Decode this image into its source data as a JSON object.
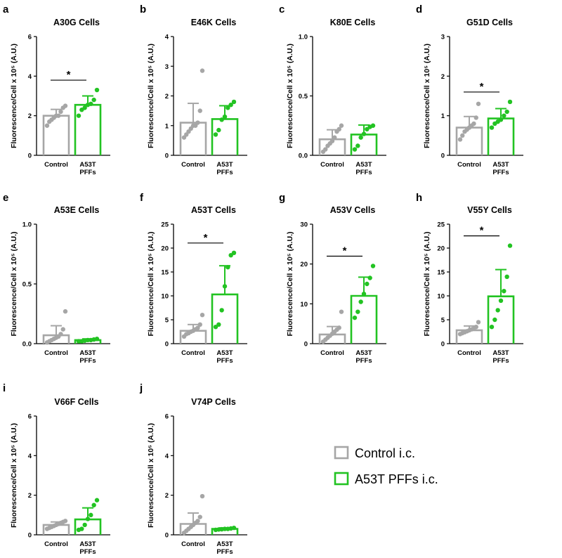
{
  "figure": {
    "ylabel": "Fluorescence/Cell x 10⁵ (A.U.)",
    "colors": {
      "control": "#a6a6a6",
      "treated": "#22c322"
    },
    "legend": [
      {
        "label": "Control i.c.",
        "key": "control"
      },
      {
        "label": "A53T PFFs i.c.",
        "key": "treated"
      }
    ]
  },
  "chart_data": [
    {
      "panel": "a",
      "type": "bar",
      "title": "A30G Cells",
      "ylim": [
        0,
        6
      ],
      "yticks": [
        0,
        2,
        4,
        6
      ],
      "categories": [
        "Control",
        "A53T PFFs"
      ],
      "values": [
        2.0,
        2.55
      ],
      "errors": [
        0.32,
        0.45
      ],
      "significance": "*",
      "points": [
        [
          1.5,
          1.7,
          1.8,
          1.9,
          2.0,
          2.0,
          2.2,
          2.4,
          2.5
        ],
        [
          2.0,
          2.3,
          2.4,
          2.55,
          2.6,
          2.8,
          3.3
        ]
      ]
    },
    {
      "panel": "b",
      "type": "bar",
      "title": "E46K Cells",
      "ylim": [
        0,
        4
      ],
      "yticks": [
        0,
        1,
        2,
        3,
        4
      ],
      "categories": [
        "Control",
        "A53T PFFs"
      ],
      "values": [
        1.1,
        1.22
      ],
      "errors": [
        0.65,
        0.45
      ],
      "significance": "",
      "points": [
        [
          0.6,
          0.7,
          0.8,
          0.9,
          1.0,
          1.0,
          1.1,
          1.5,
          2.85
        ],
        [
          0.7,
          0.85,
          1.2,
          1.3,
          1.6,
          1.7,
          1.8
        ]
      ]
    },
    {
      "panel": "c",
      "type": "bar",
      "title": "K80E Cells",
      "ylim": [
        0,
        1.0
      ],
      "yticks": [
        0.0,
        0.5,
        1.0
      ],
      "categories": [
        "Control",
        "A53T PFFs"
      ],
      "values": [
        0.135,
        0.175
      ],
      "errors": [
        0.08,
        0.08
      ],
      "significance": "",
      "points": [
        [
          0.03,
          0.05,
          0.08,
          0.1,
          0.12,
          0.15,
          0.2,
          0.22,
          0.25
        ],
        [
          0.05,
          0.08,
          0.15,
          0.18,
          0.22,
          0.24,
          0.25
        ]
      ]
    },
    {
      "panel": "d",
      "type": "bar",
      "title": "G51D Cells",
      "ylim": [
        0,
        3
      ],
      "yticks": [
        0,
        1,
        2,
        3
      ],
      "categories": [
        "Control",
        "A53T PFFs"
      ],
      "values": [
        0.7,
        0.93
      ],
      "errors": [
        0.28,
        0.25
      ],
      "significance": "*",
      "points": [
        [
          0.4,
          0.5,
          0.6,
          0.65,
          0.7,
          0.75,
          0.8,
          0.95,
          1.3
        ],
        [
          0.7,
          0.8,
          0.85,
          0.9,
          1.0,
          1.1,
          1.35
        ]
      ]
    },
    {
      "panel": "e",
      "type": "bar",
      "title": "A53E Cells",
      "ylim": [
        0,
        1.0
      ],
      "yticks": [
        0.0,
        0.5,
        1.0
      ],
      "categories": [
        "Control",
        "A53T PFFs"
      ],
      "values": [
        0.07,
        0.03
      ],
      "errors": [
        0.08,
        0.01
      ],
      "significance": "",
      "points": [
        [
          0.01,
          0.02,
          0.03,
          0.04,
          0.05,
          0.06,
          0.08,
          0.12,
          0.27
        ],
        [
          0.02,
          0.02,
          0.025,
          0.03,
          0.03,
          0.035,
          0.04
        ]
      ]
    },
    {
      "panel": "f",
      "type": "bar",
      "title": "A53T Cells",
      "ylim": [
        0,
        25
      ],
      "yticks": [
        0,
        5,
        10,
        15,
        20,
        25
      ],
      "categories": [
        "Control",
        "A53T PFFs"
      ],
      "values": [
        2.7,
        10.3
      ],
      "errors": [
        1.3,
        6.0
      ],
      "significance": "*",
      "points": [
        [
          1.5,
          2.0,
          2.2,
          2.5,
          2.7,
          3.0,
          3.3,
          4.0,
          6.0
        ],
        [
          3.5,
          4.0,
          7.0,
          12.0,
          16.0,
          18.5,
          19.0
        ]
      ]
    },
    {
      "panel": "g",
      "type": "bar",
      "title": "A53V Cells",
      "ylim": [
        0,
        30
      ],
      "yticks": [
        0,
        10,
        20,
        30
      ],
      "categories": [
        "Control",
        "A53T PFFs"
      ],
      "values": [
        2.3,
        12.0
      ],
      "errors": [
        2.0,
        4.7
      ],
      "significance": "*",
      "points": [
        [
          0.5,
          1.0,
          1.5,
          2.0,
          2.5,
          3.0,
          3.5,
          4.0,
          8.0
        ],
        [
          6.5,
          8.0,
          10.5,
          12.5,
          15.0,
          16.5,
          19.5
        ]
      ]
    },
    {
      "panel": "h",
      "type": "bar",
      "title": "V55Y Cells",
      "ylim": [
        0,
        25
      ],
      "yticks": [
        0,
        5,
        10,
        15,
        20,
        25
      ],
      "categories": [
        "Control",
        "A53T PFFs"
      ],
      "values": [
        2.8,
        9.9
      ],
      "errors": [
        0.9,
        5.6
      ],
      "significance": "*",
      "points": [
        [
          2.0,
          2.2,
          2.4,
          2.6,
          2.8,
          3.0,
          3.2,
          3.5,
          4.5
        ],
        [
          3.5,
          5.0,
          7.0,
          9.0,
          11.0,
          14.0,
          20.5
        ]
      ]
    },
    {
      "panel": "i",
      "type": "bar",
      "title": "V66F Cells",
      "ylim": [
        0,
        6
      ],
      "yticks": [
        0,
        2,
        4,
        6
      ],
      "categories": [
        "Control",
        "A53T PFFs"
      ],
      "values": [
        0.5,
        0.78
      ],
      "errors": [
        0.15,
        0.58
      ],
      "significance": "",
      "points": [
        [
          0.3,
          0.35,
          0.4,
          0.45,
          0.5,
          0.55,
          0.6,
          0.65,
          0.7
        ],
        [
          0.25,
          0.3,
          0.5,
          0.8,
          1.0,
          1.5,
          1.75
        ]
      ]
    },
    {
      "panel": "j",
      "type": "bar",
      "title": "V74P Cells",
      "ylim": [
        0,
        6
      ],
      "yticks": [
        0,
        2,
        4,
        6
      ],
      "categories": [
        "Control",
        "A53T PFFs"
      ],
      "values": [
        0.55,
        0.3
      ],
      "errors": [
        0.55,
        0.05
      ],
      "significance": "",
      "points": [
        [
          0.1,
          0.2,
          0.3,
          0.4,
          0.5,
          0.6,
          0.7,
          0.9,
          1.95
        ],
        [
          0.25,
          0.27,
          0.28,
          0.3,
          0.3,
          0.32,
          0.35
        ]
      ]
    }
  ]
}
